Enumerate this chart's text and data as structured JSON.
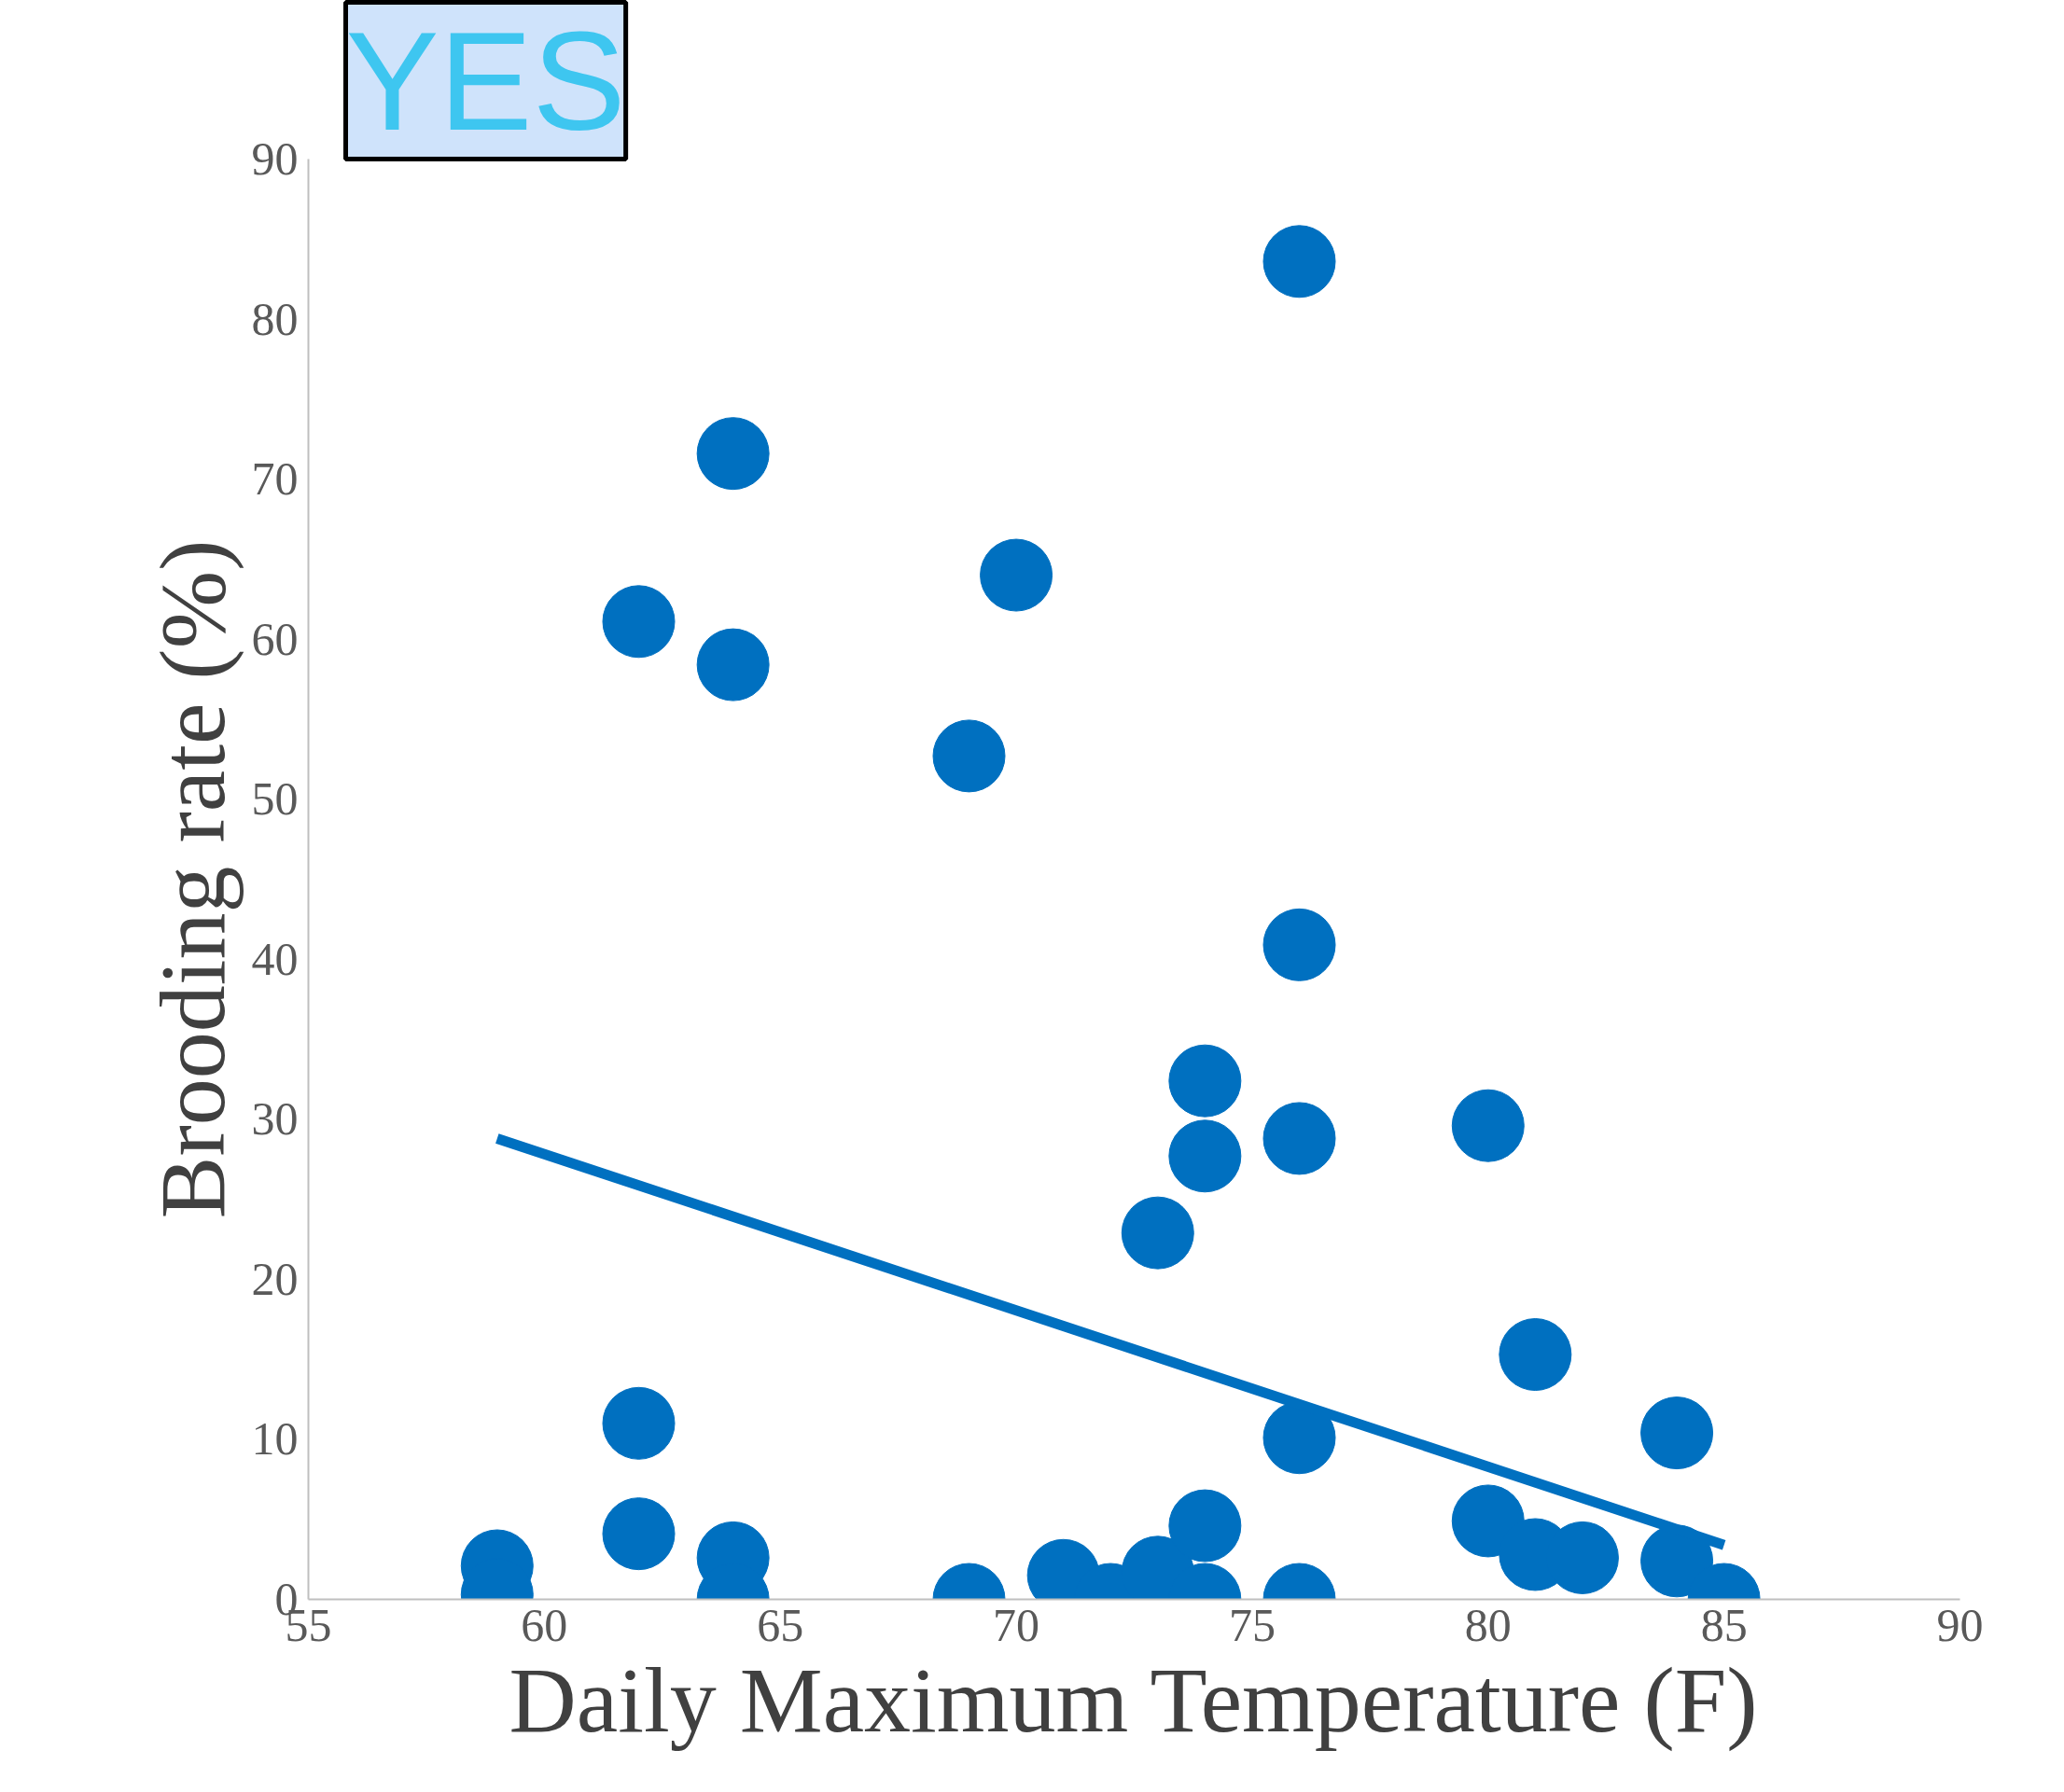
{
  "chart_data": {
    "type": "scatter",
    "xlabel": "Daily Maximum Temperature (F)",
    "ylabel": "Brooding rate (%)",
    "annotations": [
      "YES"
    ],
    "xlim": [
      55,
      90
    ],
    "xticks": [
      55,
      60,
      65,
      70,
      75,
      80,
      85,
      90
    ],
    "ylim": [
      0,
      90
    ],
    "yticks": [
      0,
      10,
      20,
      30,
      40,
      50,
      60,
      70,
      80,
      90
    ],
    "grid": false,
    "series": [
      {
        "color": "#0070c0",
        "marker": "circle",
        "x": [
          59,
          59,
          62,
          62,
          62,
          64,
          64,
          64,
          64,
          69,
          69,
          70,
          71,
          72,
          73,
          73,
          74,
          74,
          74,
          74,
          76,
          76,
          76,
          76,
          76,
          80,
          80,
          81,
          81,
          82,
          84,
          84,
          85
        ],
        "values": [
          2.1,
          0.3,
          61.1,
          11,
          4.1,
          71.6,
          58.4,
          2.6,
          0,
          52.7,
          0,
          64,
          1.5,
          0,
          22.9,
          1.7,
          32.4,
          27.7,
          4.6,
          0,
          83.6,
          40.9,
          28.8,
          10.1,
          0,
          29.6,
          4.9,
          15.3,
          2.8,
          2.6,
          10.4,
          2.4,
          0
        ]
      },
      {
        "color": "#0070c0",
        "type": "line",
        "x": [
          59,
          85
        ],
        "values": [
          28.8,
          3.4
        ]
      }
    ]
  }
}
